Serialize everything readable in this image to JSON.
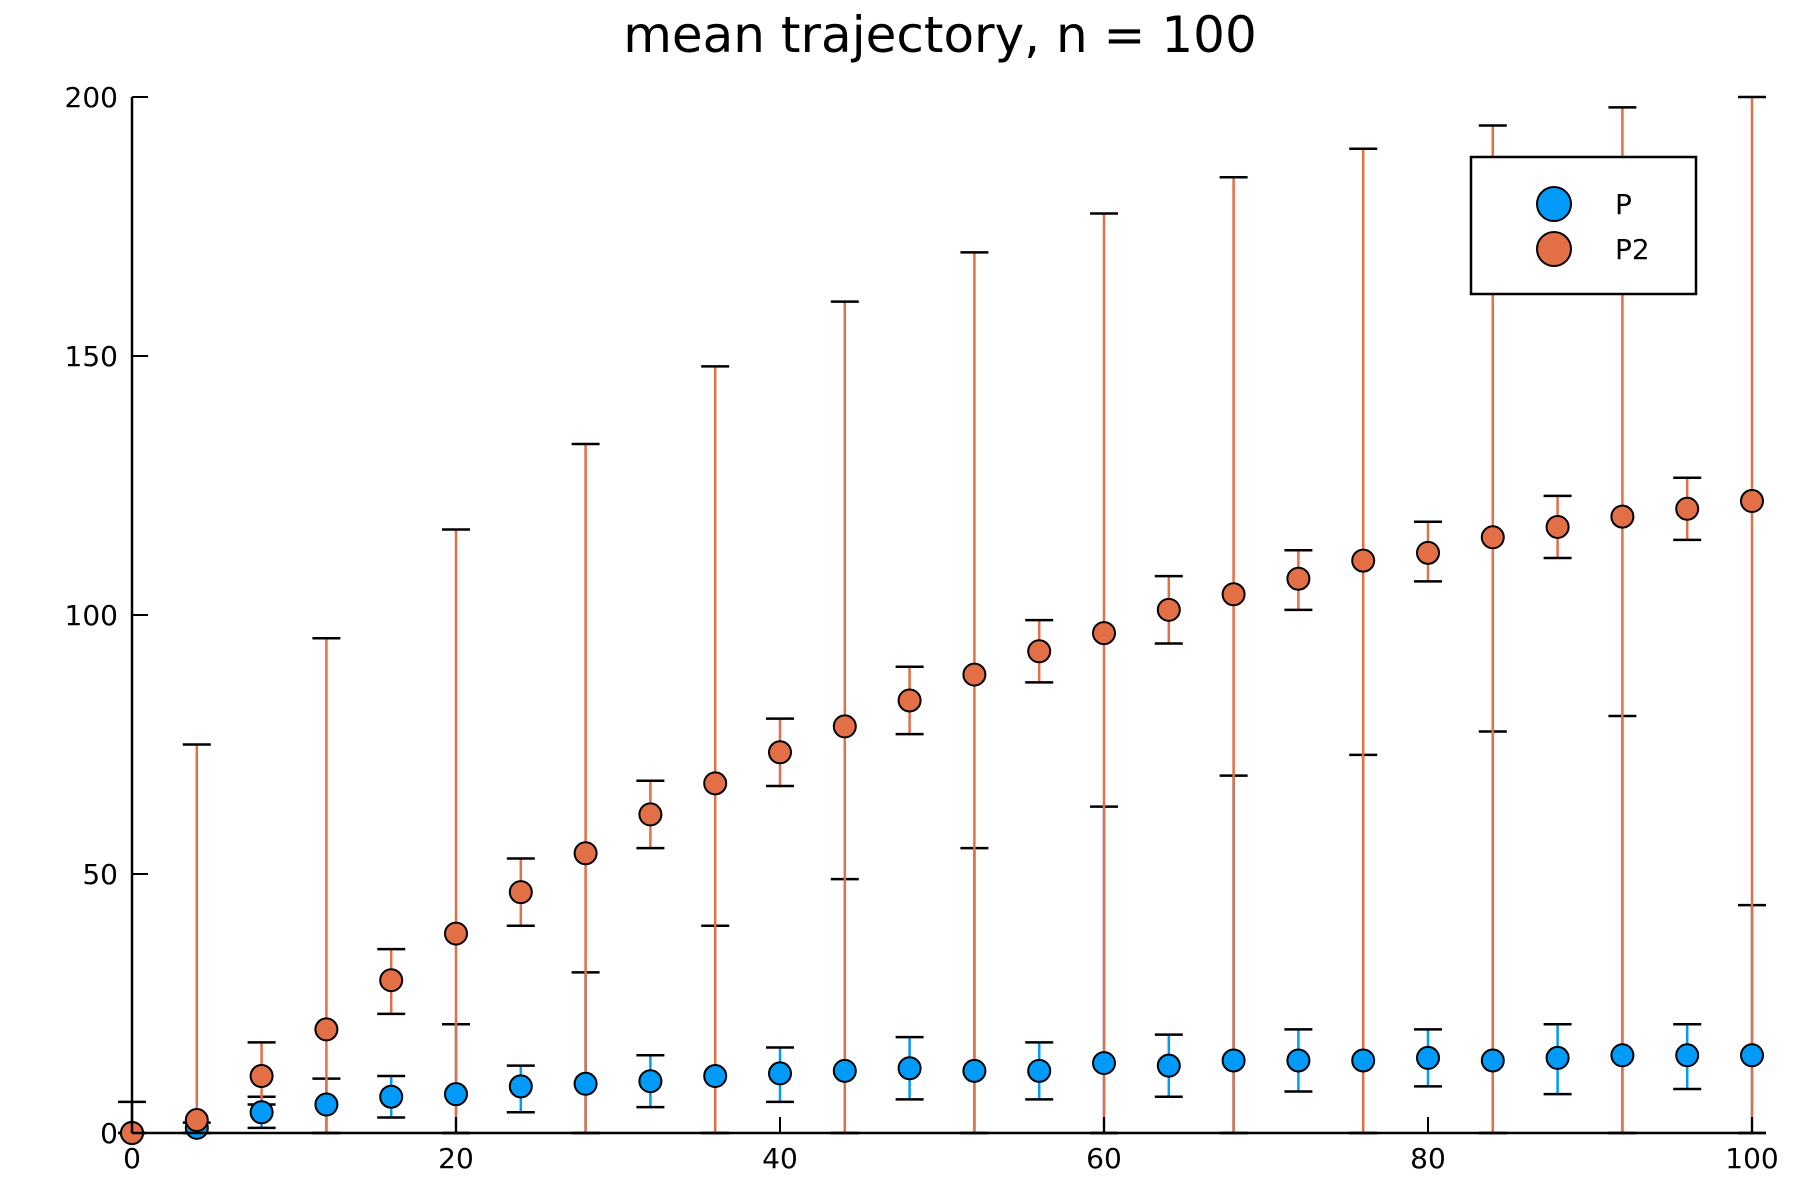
{
  "chart_data": {
    "type": "scatter",
    "title": "mean trajectory, n = 100",
    "xlabel": "",
    "ylabel": "",
    "xlim": [
      0,
      100
    ],
    "ylim": [
      0,
      200
    ],
    "x_ticks": [
      0,
      20,
      40,
      60,
      80,
      100
    ],
    "y_ticks": [
      0,
      50,
      100,
      150,
      200
    ],
    "grid": false,
    "legend_position": "top-right",
    "x": [
      0,
      4,
      8,
      12,
      16,
      20,
      24,
      28,
      32,
      36,
      40,
      44,
      48,
      52,
      56,
      60,
      64,
      68,
      72,
      76,
      80,
      84,
      88,
      92,
      96,
      100
    ],
    "series": [
      {
        "name": "P",
        "color": "#009AF9",
        "y": [
          0,
          1,
          4,
          5.5,
          7,
          7.5,
          9,
          9.5,
          10,
          11,
          11.5,
          12,
          12.5,
          12,
          12,
          13.5,
          13,
          14,
          14,
          14,
          14.5,
          14,
          14.5,
          15,
          15,
          15
        ],
        "lower": [
          0,
          0,
          1,
          0,
          3,
          0,
          4,
          0,
          5,
          0,
          6,
          0,
          6.5,
          0,
          6.5,
          0,
          7,
          0,
          8,
          0,
          9,
          0,
          7.5,
          0,
          8.5,
          0
        ],
        "upper": [
          6,
          2,
          7,
          10.5,
          11,
          21,
          13,
          31,
          15,
          40,
          16.5,
          49,
          18.5,
          55,
          17.5,
          63,
          19,
          69,
          20,
          73,
          20,
          77.5,
          21,
          80.5,
          21,
          44
        ]
      },
      {
        "name": "P2",
        "color": "#E26F46",
        "y": [
          0,
          2.5,
          11,
          20,
          29.5,
          38.5,
          46.5,
          54,
          61.5,
          67.5,
          73.5,
          78.5,
          83.5,
          88.5,
          93,
          96.5,
          101,
          104,
          107,
          110.5,
          112,
          115,
          117,
          119,
          120.5,
          122
        ],
        "lower": [
          0,
          0,
          5.5,
          0,
          23,
          0,
          40,
          0,
          55,
          0,
          67,
          0,
          77,
          0,
          87,
          0,
          94.5,
          0,
          101,
          0,
          106.5,
          0,
          111,
          0,
          114.5,
          0
        ],
        "upper": [
          0,
          75,
          17.5,
          95.5,
          35.5,
          116.5,
          53,
          133,
          68,
          148,
          80,
          160.5,
          90,
          170,
          99,
          177.5,
          107.5,
          184.5,
          112.5,
          190,
          118,
          194.5,
          123,
          198,
          126.5,
          200
        ]
      }
    ]
  }
}
